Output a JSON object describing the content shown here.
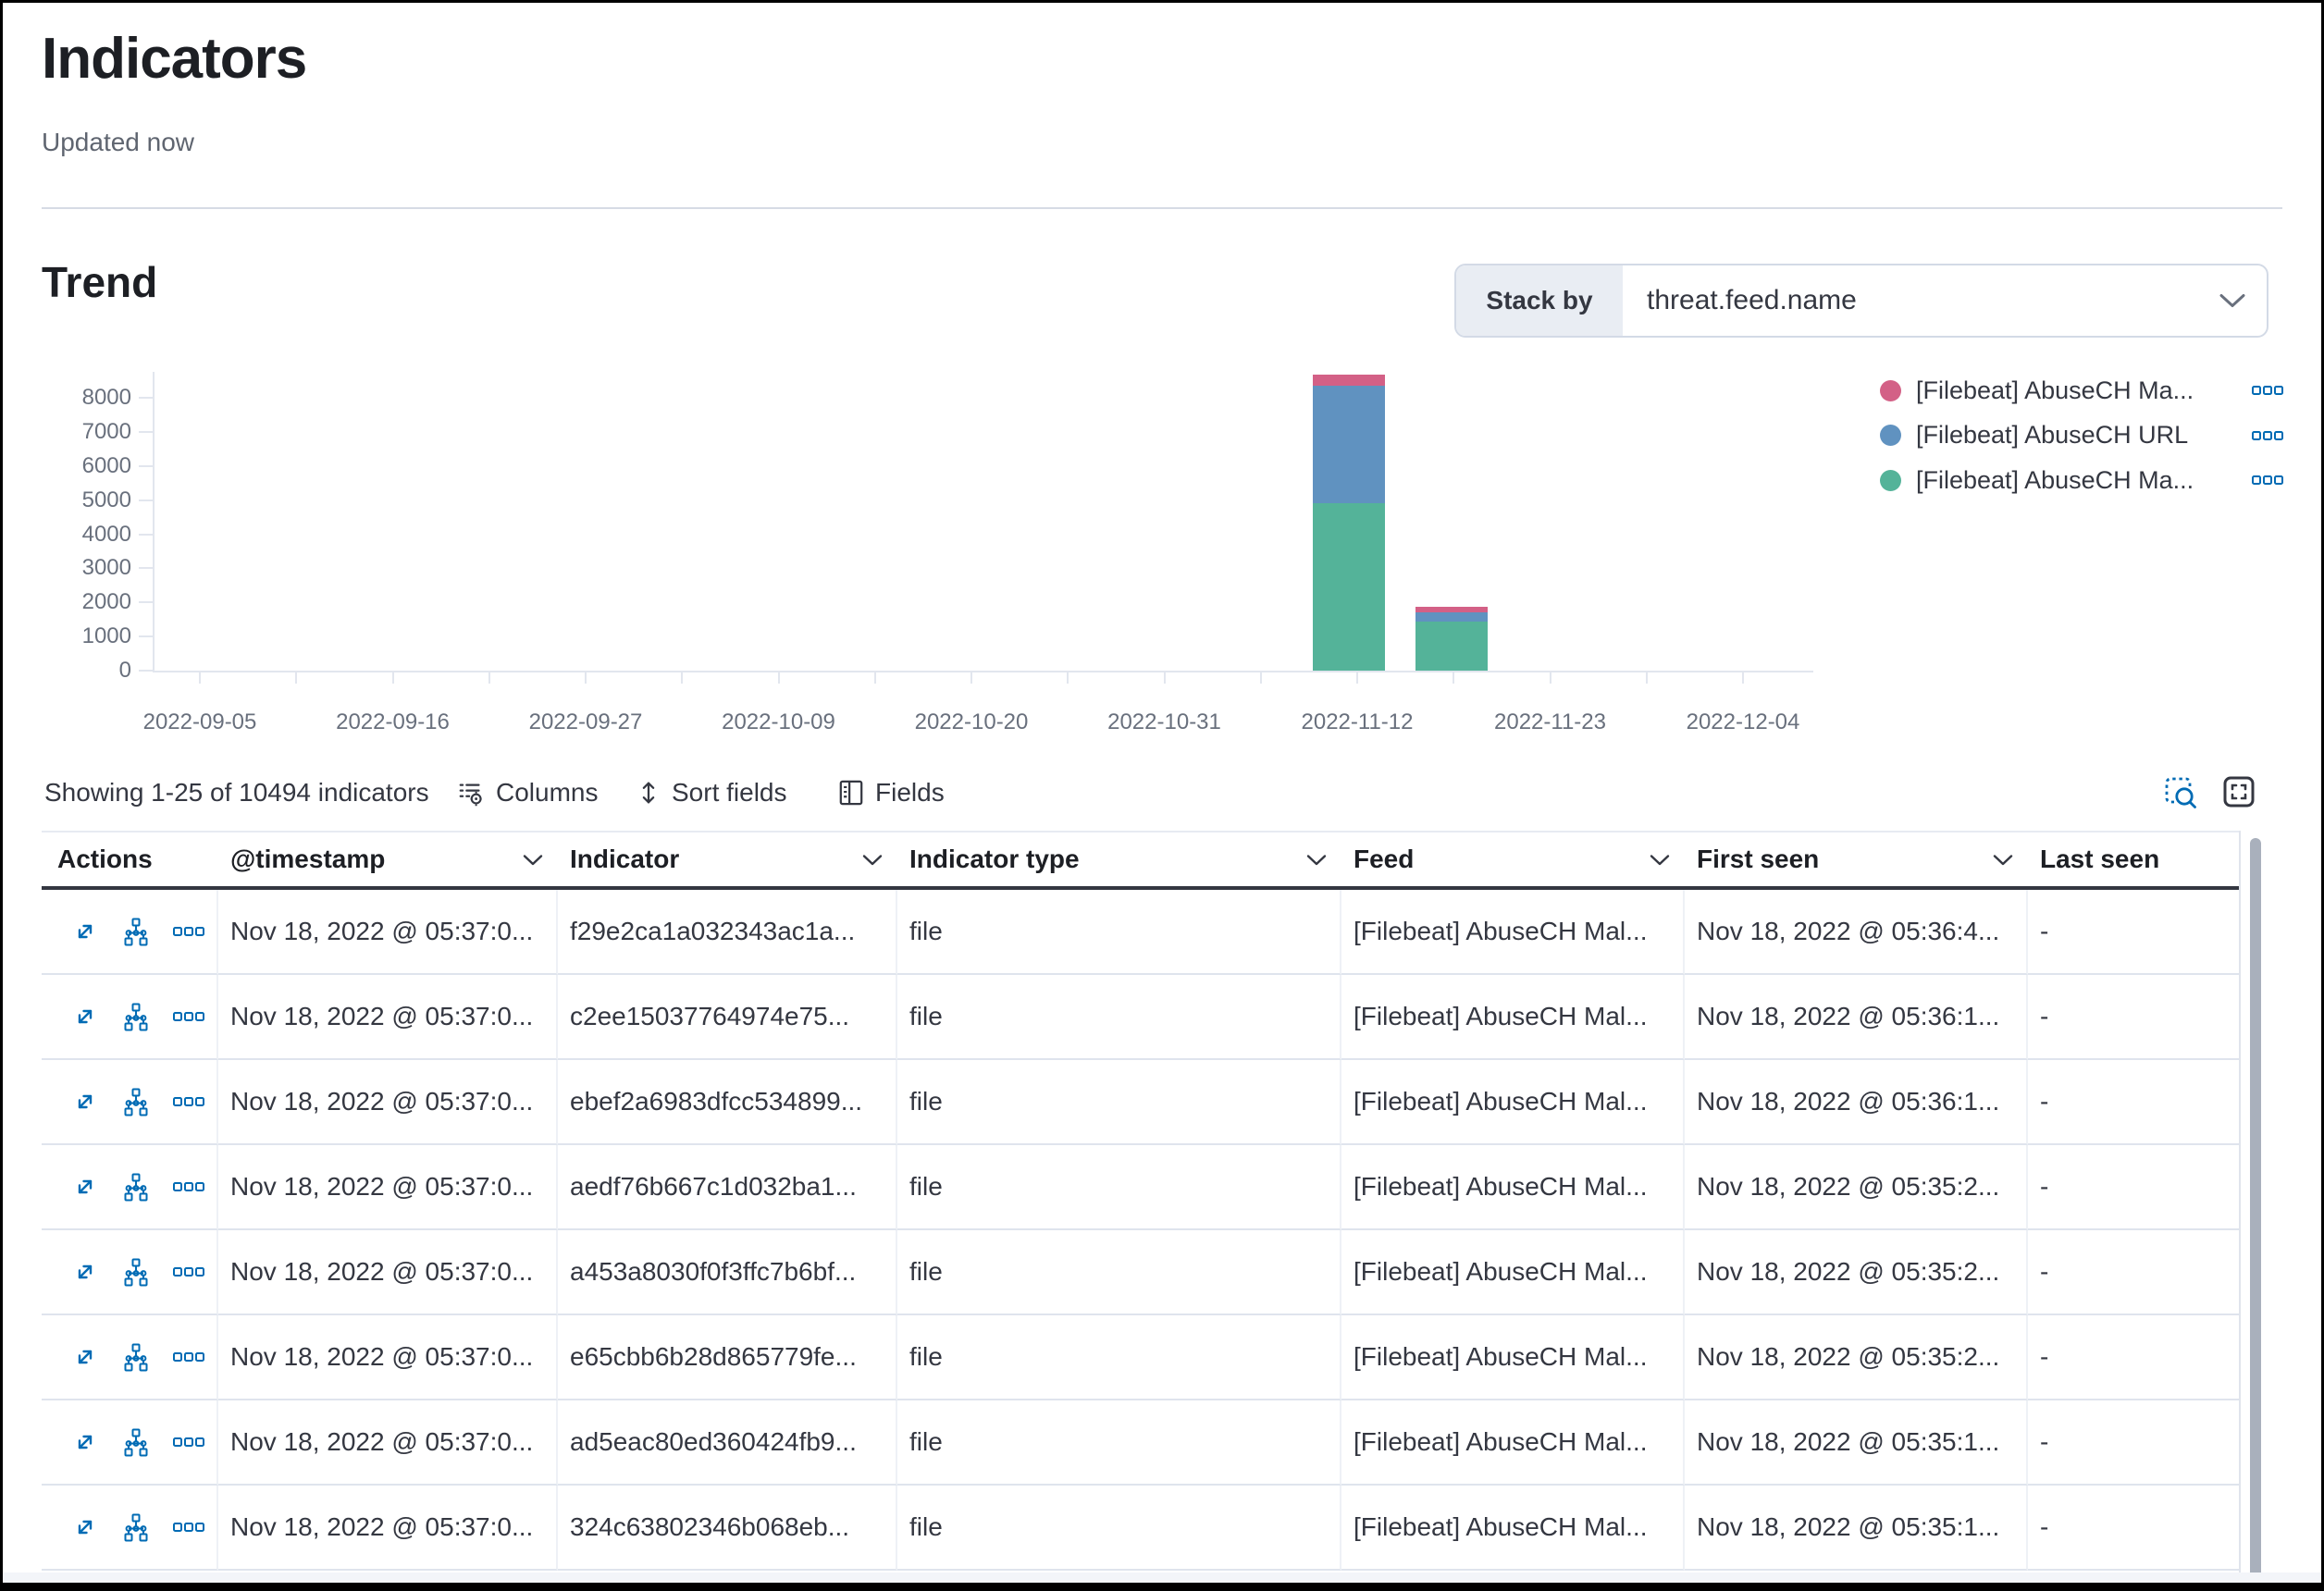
{
  "page": {
    "title": "Indicators",
    "updated": "Updated now"
  },
  "trend": {
    "heading": "Trend",
    "stack_by_label": "Stack by",
    "stack_by_value": "threat.feed.name"
  },
  "chart_data": {
    "type": "bar",
    "stacked": true,
    "title": "Trend",
    "legend_position": "right",
    "grid": false,
    "x_axis": {
      "type": "time",
      "tick_labels": [
        "2022-09-05",
        "2022-09-16",
        "2022-09-27",
        "2022-10-09",
        "2022-10-20",
        "2022-10-31",
        "2022-11-12",
        "2022-11-23",
        "2022-12-04"
      ]
    },
    "y_axis": {
      "min": 0,
      "max": 8000,
      "tick_labels": [
        "0",
        "1000",
        "2000",
        "3000",
        "4000",
        "5000",
        "6000",
        "7000",
        "8000"
      ]
    },
    "series": [
      {
        "name": "[Filebeat] AbuseCH Ma...",
        "color": "#d36086",
        "points": [
          {
            "x": "2022-11-11",
            "y": 330
          },
          {
            "x": "2022-11-17",
            "y": 160
          }
        ]
      },
      {
        "name": "[Filebeat] AbuseCH URL",
        "color": "#6092c0",
        "points": [
          {
            "x": "2022-11-11",
            "y": 3450
          },
          {
            "x": "2022-11-17",
            "y": 270
          }
        ]
      },
      {
        "name": "[Filebeat] AbuseCH Ma...",
        "color": "#54b399",
        "points": [
          {
            "x": "2022-11-11",
            "y": 4900
          },
          {
            "x": "2022-11-17",
            "y": 1440
          }
        ]
      }
    ]
  },
  "toolbar": {
    "showing": "Showing 1-25 of 10494 indicators",
    "columns_label": "Columns",
    "sort_label": "Sort fields",
    "fields_label": "Fields"
  },
  "table": {
    "headers": [
      {
        "label": "Actions",
        "sortable": false
      },
      {
        "label": "@timestamp",
        "sortable": true
      },
      {
        "label": "Indicator",
        "sortable": true
      },
      {
        "label": "Indicator type",
        "sortable": true
      },
      {
        "label": "Feed",
        "sortable": true
      },
      {
        "label": "First seen",
        "sortable": true
      },
      {
        "label": "Last seen",
        "sortable": false
      }
    ],
    "rows": [
      {
        "timestamp": "Nov 18, 2022 @ 05:37:0...",
        "indicator": "f29e2ca1a032343ac1a...",
        "type": "file",
        "feed": "[Filebeat] AbuseCH Mal...",
        "first_seen": "Nov 18, 2022 @ 05:36:4...",
        "last_seen": "-"
      },
      {
        "timestamp": "Nov 18, 2022 @ 05:37:0...",
        "indicator": "c2ee15037764974e75...",
        "type": "file",
        "feed": "[Filebeat] AbuseCH Mal...",
        "first_seen": "Nov 18, 2022 @ 05:36:1...",
        "last_seen": "-"
      },
      {
        "timestamp": "Nov 18, 2022 @ 05:37:0...",
        "indicator": "ebef2a6983dfcc534899...",
        "type": "file",
        "feed": "[Filebeat] AbuseCH Mal...",
        "first_seen": "Nov 18, 2022 @ 05:36:1...",
        "last_seen": "-"
      },
      {
        "timestamp": "Nov 18, 2022 @ 05:37:0...",
        "indicator": "aedf76b667c1d032ba1...",
        "type": "file",
        "feed": "[Filebeat] AbuseCH Mal...",
        "first_seen": "Nov 18, 2022 @ 05:35:2...",
        "last_seen": "-"
      },
      {
        "timestamp": "Nov 18, 2022 @ 05:37:0...",
        "indicator": "a453a8030f0f3ffc7b6bf...",
        "type": "file",
        "feed": "[Filebeat] AbuseCH Mal...",
        "first_seen": "Nov 18, 2022 @ 05:35:2...",
        "last_seen": "-"
      },
      {
        "timestamp": "Nov 18, 2022 @ 05:37:0...",
        "indicator": "e65cbb6b28d865779fe...",
        "type": "file",
        "feed": "[Filebeat] AbuseCH Mal...",
        "first_seen": "Nov 18, 2022 @ 05:35:2...",
        "last_seen": "-"
      },
      {
        "timestamp": "Nov 18, 2022 @ 05:37:0...",
        "indicator": "ad5eac80ed360424fb9...",
        "type": "file",
        "feed": "[Filebeat] AbuseCH Mal...",
        "first_seen": "Nov 18, 2022 @ 05:35:1...",
        "last_seen": "-"
      },
      {
        "timestamp": "Nov 18, 2022 @ 05:37:0...",
        "indicator": "324c63802346b068eb...",
        "type": "file",
        "feed": "[Filebeat] AbuseCH Mal...",
        "first_seen": "Nov 18, 2022 @ 05:35:1...",
        "last_seen": "-"
      }
    ]
  }
}
